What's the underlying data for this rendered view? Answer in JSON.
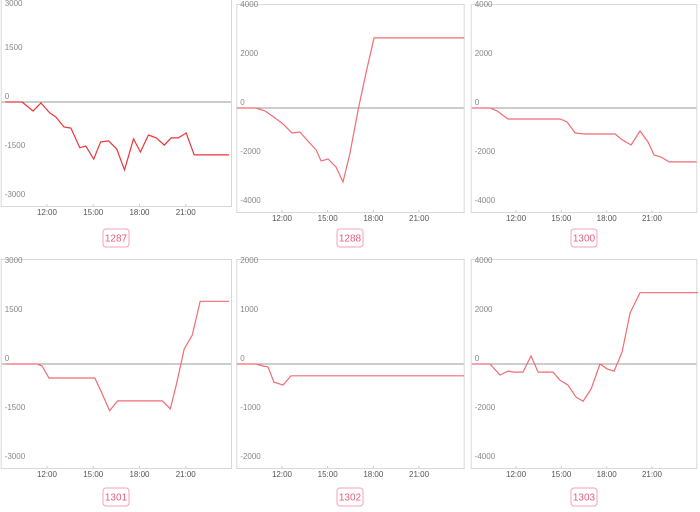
{
  "chart_data": [
    {
      "type": "line",
      "title": "1287",
      "color": "#e8363a",
      "x": [
        9.29,
        10.39,
        11.1,
        11.61,
        12.19,
        12.58,
        13.1,
        13.55,
        14.13,
        14.52,
        15.03,
        15.48,
        16.0,
        16.52,
        17.03,
        17.61,
        18.06,
        18.58,
        19.1,
        19.61,
        20.06,
        20.52,
        21.03,
        21.55,
        23.81
      ],
      "values": [
        0,
        0,
        -275,
        -30,
        -340,
        -460,
        -765,
        -800,
        -1400,
        -1350,
        -1750,
        -1220,
        -1190,
        -1440,
        -2080,
        -1130,
        -1530,
        -1010,
        -1100,
        -1320,
        -1100,
        -1100,
        -950,
        -1620,
        -1620
      ],
      "xlim": [
        9,
        24
      ],
      "ylim": [
        -3000,
        3000
      ],
      "yticks": [
        3000,
        1500,
        0,
        -1500,
        -3000
      ],
      "xticks": [
        {
          "value": 12,
          "label": "12:00"
        },
        {
          "value": 15,
          "label": "15:00"
        },
        {
          "value": 18,
          "label": "18:00"
        },
        {
          "value": 21,
          "label": "21:00"
        }
      ]
    },
    {
      "type": "line",
      "title": "1288",
      "color": "#f26b73",
      "x": [
        9.04,
        10.29,
        10.88,
        11.47,
        12.07,
        12.66,
        13.18,
        13.71,
        14.24,
        14.57,
        15.03,
        15.55,
        16.01,
        16.47,
        17.0,
        17.53,
        18.05,
        23.97
      ],
      "values": [
        0,
        0,
        -120,
        -370,
        -650,
        -1020,
        -980,
        -1350,
        -1710,
        -2160,
        -2080,
        -2410,
        -3020,
        -1840,
        -80,
        1470,
        2860,
        2860
      ],
      "xlim": [
        9,
        24
      ],
      "ylim": [
        -4000,
        4000
      ],
      "yticks": [
        4000,
        2000,
        0,
        -2000,
        -4000
      ],
      "xticks": [
        {
          "value": 12,
          "label": "12:00"
        },
        {
          "value": 15,
          "label": "15:00"
        },
        {
          "value": 18,
          "label": "18:00"
        },
        {
          "value": 21,
          "label": "21:00"
        }
      ]
    },
    {
      "type": "line",
      "title": "1300",
      "color": "#f26b73",
      "x": [
        9.09,
        10.28,
        10.74,
        11.47,
        14.91,
        15.38,
        15.91,
        16.57,
        18.56,
        19.02,
        19.62,
        20.21,
        20.74,
        21.14,
        21.6,
        22.13,
        23.95
      ],
      "values": [
        0,
        0,
        -120,
        -450,
        -450,
        -570,
        -1020,
        -1060,
        -1060,
        -1300,
        -1510,
        -940,
        -1390,
        -1920,
        -2000,
        -2200,
        -2200
      ],
      "xlim": [
        9,
        24
      ],
      "ylim": [
        -4000,
        4000
      ],
      "yticks": [
        4000,
        2000,
        0,
        -2000,
        -4000
      ],
      "xticks": [
        {
          "value": 12,
          "label": "12:00"
        },
        {
          "value": 15,
          "label": "15:00"
        },
        {
          "value": 18,
          "label": "18:00"
        },
        {
          "value": 21,
          "label": "21:00"
        }
      ]
    },
    {
      "type": "line",
      "title": "1301",
      "color": "#f26b73",
      "x": [
        9.29,
        11.35,
        11.68,
        12.13,
        15.1,
        15.55,
        16.06,
        16.58,
        19.48,
        20.0,
        20.39,
        20.9,
        21.42,
        21.94,
        23.81
      ],
      "values": [
        0,
        0,
        -60,
        -430,
        -430,
        -880,
        -1430,
        -1130,
        -1130,
        -1370,
        -640,
        460,
        880,
        1920,
        1920
      ],
      "xlim": [
        9,
        24
      ],
      "ylim": [
        -3000,
        3000
      ],
      "yticks": [
        3000,
        1500,
        0,
        -1500,
        -3000
      ],
      "xticks": [
        {
          "value": 12,
          "label": "12:00"
        },
        {
          "value": 15,
          "label": "15:00"
        },
        {
          "value": 18,
          "label": "18:00"
        },
        {
          "value": 21,
          "label": "21:00"
        }
      ]
    },
    {
      "type": "line",
      "title": "1302",
      "color": "#f26b73",
      "x": [
        9.04,
        10.29,
        10.75,
        11.08,
        11.47,
        12.07,
        12.59,
        23.97
      ],
      "values": [
        0,
        0,
        -40,
        -60,
        -370,
        -430,
        -240,
        -240
      ],
      "xlim": [
        9,
        24
      ],
      "ylim": [
        -2000,
        2000
      ],
      "yticks": [
        2000,
        1000,
        0,
        -1000,
        -2000
      ],
      "xticks": [
        {
          "value": 12,
          "label": "12:00"
        },
        {
          "value": 15,
          "label": "15:00"
        },
        {
          "value": 18,
          "label": "18:00"
        },
        {
          "value": 21,
          "label": "21:00"
        }
      ]
    },
    {
      "type": "line",
      "title": "1303",
      "color": "#f26b73",
      "x": [
        9.09,
        10.28,
        10.94,
        11.47,
        11.87,
        12.46,
        12.99,
        13.46,
        14.45,
        14.91,
        15.44,
        15.97,
        16.44,
        16.97,
        17.56,
        18.03,
        18.49,
        19.02,
        19.55,
        20.21,
        24.05
      ],
      "values": [
        0,
        0,
        -450,
        -290,
        -330,
        -330,
        330,
        -330,
        -330,
        -660,
        -860,
        -1350,
        -1520,
        -1020,
        0,
        -200,
        -290,
        490,
        2090,
        2910,
        2910
      ],
      "xlim": [
        9,
        24
      ],
      "ylim": [
        -4000,
        4000
      ],
      "yticks": [
        4000,
        2000,
        0,
        -2000,
        -4000
      ],
      "xticks": [
        {
          "value": 12,
          "label": "12:00"
        },
        {
          "value": 15,
          "label": "15:00"
        },
        {
          "value": 18,
          "label": "18:00"
        },
        {
          "value": 21,
          "label": "21:00"
        }
      ]
    }
  ]
}
